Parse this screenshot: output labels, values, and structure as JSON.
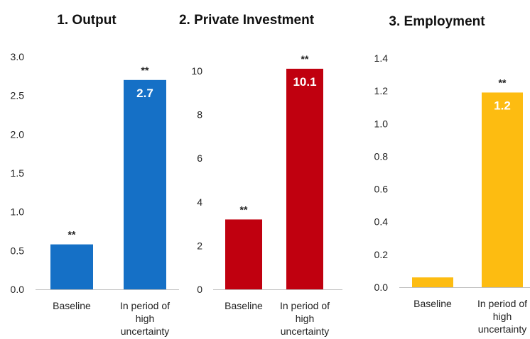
{
  "chart_data": [
    {
      "type": "bar",
      "title": "1. Output",
      "categories": [
        "Baseline",
        [
          "In period of",
          "high",
          "uncertainty"
        ]
      ],
      "values": [
        0.58,
        2.7
      ],
      "value_labels": [
        "",
        "2.7"
      ],
      "significance": [
        "**",
        "**"
      ],
      "color": "#1570c6",
      "ylim": [
        0,
        3.0
      ],
      "yticks": [
        "0.0",
        "0.5",
        "1.0",
        "1.5",
        "2.0",
        "2.5",
        "3.0"
      ],
      "grid": false
    },
    {
      "type": "bar",
      "title": "2. Private Investment",
      "categories": [
        "Baseline",
        [
          "In period of",
          "high",
          "uncertainty"
        ]
      ],
      "values": [
        3.2,
        10.1
      ],
      "value_labels": [
        "",
        "10.1"
      ],
      "significance": [
        "**",
        "**"
      ],
      "color": "#c0000f",
      "ylim": [
        0,
        10
      ],
      "yticks": [
        "0",
        "2",
        "4",
        "6",
        "8",
        "10"
      ],
      "grid": false
    },
    {
      "type": "bar",
      "title": "3. Employment",
      "categories": [
        "Baseline",
        [
          "In period of",
          "high",
          "uncertainty"
        ]
      ],
      "values": [
        0.06,
        1.19
      ],
      "value_labels": [
        "",
        "1.2"
      ],
      "significance": [
        "",
        "**"
      ],
      "color": "#fdbc11",
      "ylim": [
        0,
        1.4
      ],
      "yticks": [
        "0.0",
        "0.2",
        "0.4",
        "0.6",
        "0.8",
        "1.0",
        "1.2",
        "1.4"
      ],
      "grid": false
    }
  ]
}
